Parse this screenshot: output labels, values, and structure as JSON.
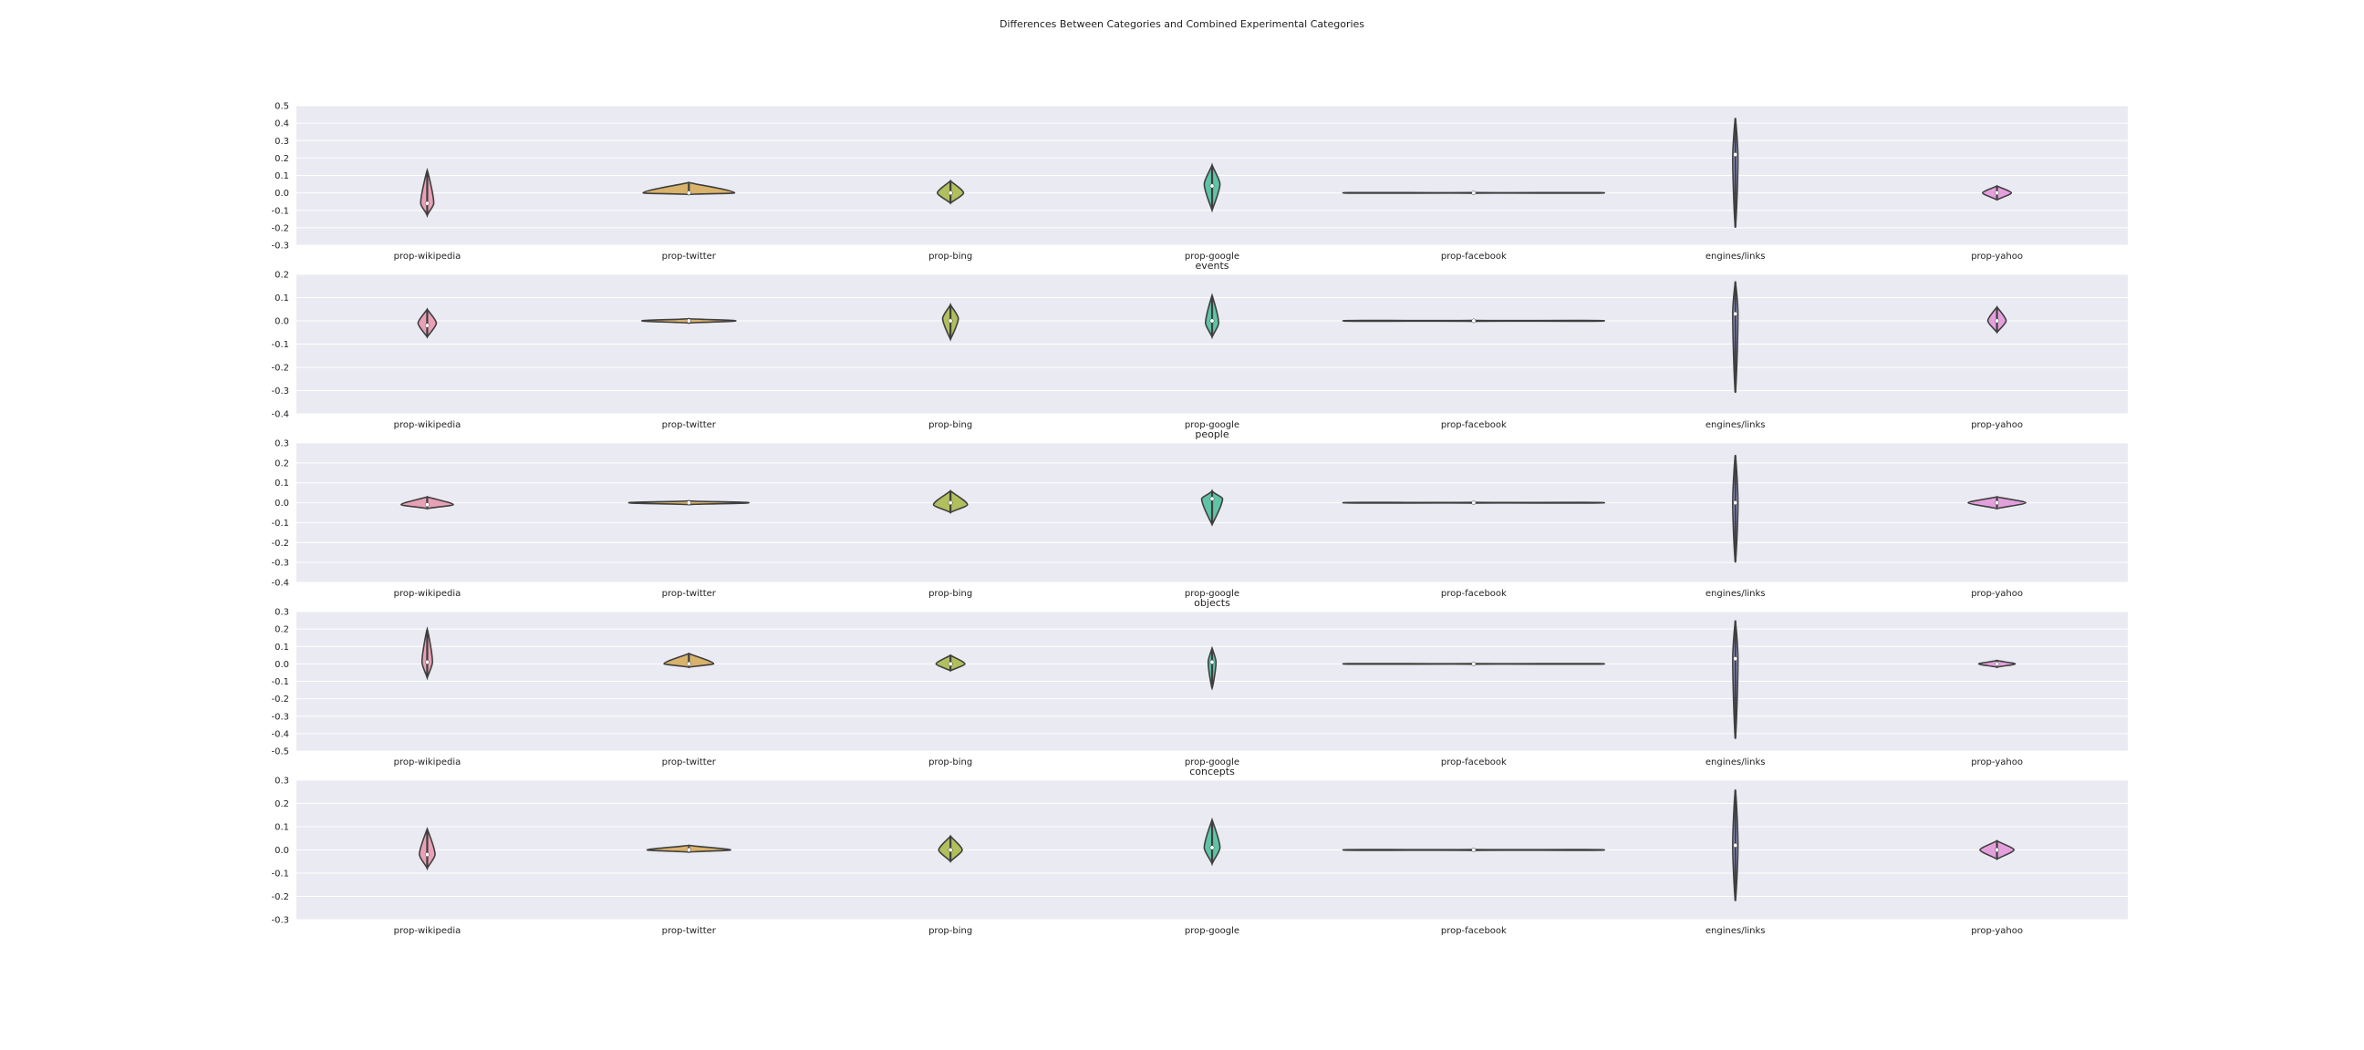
{
  "figure": {
    "title": "Differences Between Categories and Combined Experimental Categories"
  },
  "categories": [
    "prop-wikipedia",
    "prop-twitter",
    "prop-bing",
    "prop-google",
    "prop-facebook",
    "engines/links",
    "prop-yahoo"
  ],
  "palette": [
    "#e8a1b6",
    "#d9b26b",
    "#b1bf5c",
    "#5fc4a6",
    "#62b4d6",
    "#a3a9e6",
    "#e4a0dc"
  ],
  "chart_data": [
    {
      "type": "violin",
      "subtitle": "",
      "ylim": [
        -0.3,
        0.5
      ],
      "yticks": [
        -0.3,
        -0.2,
        -0.1,
        0.0,
        0.1,
        0.2,
        0.3,
        0.4,
        0.5
      ],
      "grid": true,
      "violins": [
        {
          "category": "prop-wikipedia",
          "min": -0.13,
          "max": 0.13,
          "median": -0.06,
          "peak": -0.06,
          "width": 0.05
        },
        {
          "category": "prop-twitter",
          "min": -0.01,
          "max": 0.06,
          "median": 0.0,
          "peak": 0.0,
          "width": 0.35
        },
        {
          "category": "prop-bing",
          "min": -0.06,
          "max": 0.07,
          "median": 0.0,
          "peak": 0.0,
          "width": 0.1
        },
        {
          "category": "prop-google",
          "min": -0.1,
          "max": 0.16,
          "median": 0.04,
          "peak": 0.05,
          "width": 0.06
        },
        {
          "category": "prop-facebook",
          "min": -0.003,
          "max": 0.003,
          "median": 0.0,
          "peak": 0.0,
          "width": 1.0
        },
        {
          "category": "engines/links",
          "min": -0.2,
          "max": 0.43,
          "median": 0.22,
          "peak": 0.2,
          "width": 0.02
        },
        {
          "category": "prop-yahoo",
          "min": -0.04,
          "max": 0.04,
          "median": 0.0,
          "peak": 0.0,
          "width": 0.11
        }
      ]
    },
    {
      "type": "violin",
      "subtitle": "events",
      "ylim": [
        -0.4,
        0.2
      ],
      "yticks": [
        -0.4,
        -0.3,
        -0.2,
        -0.1,
        0.0,
        0.1,
        0.2
      ],
      "grid": true,
      "violins": [
        {
          "category": "prop-wikipedia",
          "min": -0.07,
          "max": 0.05,
          "median": -0.02,
          "peak": -0.01,
          "width": 0.07
        },
        {
          "category": "prop-twitter",
          "min": -0.01,
          "max": 0.01,
          "median": 0.0,
          "peak": 0.0,
          "width": 0.36
        },
        {
          "category": "prop-bing",
          "min": -0.08,
          "max": 0.07,
          "median": 0.0,
          "peak": 0.01,
          "width": 0.06
        },
        {
          "category": "prop-google",
          "min": -0.07,
          "max": 0.11,
          "median": 0.0,
          "peak": -0.01,
          "width": 0.05
        },
        {
          "category": "prop-facebook",
          "min": -0.003,
          "max": 0.003,
          "median": 0.0,
          "peak": 0.0,
          "width": 1.0
        },
        {
          "category": "engines/links",
          "min": -0.31,
          "max": 0.17,
          "median": 0.03,
          "peak": 0.03,
          "width": 0.02
        },
        {
          "category": "prop-yahoo",
          "min": -0.05,
          "max": 0.06,
          "median": 0.0,
          "peak": 0.0,
          "width": 0.07
        }
      ]
    },
    {
      "type": "violin",
      "subtitle": "people",
      "ylim": [
        -0.4,
        0.3
      ],
      "yticks": [
        -0.4,
        -0.3,
        -0.2,
        -0.1,
        0.0,
        0.1,
        0.2,
        0.3
      ],
      "grid": true,
      "violins": [
        {
          "category": "prop-wikipedia",
          "min": -0.03,
          "max": 0.03,
          "median": -0.01,
          "peak": -0.01,
          "width": 0.2
        },
        {
          "category": "prop-twitter",
          "min": -0.01,
          "max": 0.01,
          "median": 0.0,
          "peak": 0.0,
          "width": 0.46
        },
        {
          "category": "prop-bing",
          "min": -0.05,
          "max": 0.06,
          "median": 0.0,
          "peak": -0.01,
          "width": 0.13
        },
        {
          "category": "prop-google",
          "min": -0.11,
          "max": 0.06,
          "median": 0.02,
          "peak": 0.02,
          "width": 0.08
        },
        {
          "category": "prop-facebook",
          "min": -0.003,
          "max": 0.003,
          "median": 0.0,
          "peak": 0.0,
          "width": 1.0
        },
        {
          "category": "engines/links",
          "min": -0.3,
          "max": 0.24,
          "median": 0.0,
          "peak": 0.0,
          "width": 0.02
        },
        {
          "category": "prop-yahoo",
          "min": -0.03,
          "max": 0.03,
          "median": 0.0,
          "peak": 0.0,
          "width": 0.22
        }
      ]
    },
    {
      "type": "violin",
      "subtitle": "objects",
      "ylim": [
        -0.5,
        0.3
      ],
      "yticks": [
        -0.5,
        -0.4,
        -0.3,
        -0.2,
        -0.1,
        0.0,
        0.1,
        0.2,
        0.3
      ],
      "grid": true,
      "violins": [
        {
          "category": "prop-wikipedia",
          "min": -0.08,
          "max": 0.2,
          "median": 0.01,
          "peak": 0.01,
          "width": 0.04
        },
        {
          "category": "prop-twitter",
          "min": -0.02,
          "max": 0.06,
          "median": 0.0,
          "peak": 0.0,
          "width": 0.19
        },
        {
          "category": "prop-bing",
          "min": -0.04,
          "max": 0.05,
          "median": 0.0,
          "peak": 0.0,
          "width": 0.11
        },
        {
          "category": "prop-google",
          "min": -0.14,
          "max": 0.09,
          "median": 0.01,
          "peak": 0.01,
          "width": 0.03
        },
        {
          "category": "prop-facebook",
          "min": -0.003,
          "max": 0.003,
          "median": 0.0,
          "peak": 0.0,
          "width": 1.0
        },
        {
          "category": "engines/links",
          "min": -0.43,
          "max": 0.25,
          "median": 0.03,
          "peak": 0.03,
          "width": 0.02
        },
        {
          "category": "prop-yahoo",
          "min": -0.02,
          "max": 0.02,
          "median": 0.0,
          "peak": 0.0,
          "width": 0.14
        }
      ]
    },
    {
      "type": "violin",
      "subtitle": "concepts",
      "ylim": [
        -0.3,
        0.3
      ],
      "yticks": [
        -0.3,
        -0.2,
        -0.1,
        0.0,
        0.1,
        0.2,
        0.3
      ],
      "grid": true,
      "violins": [
        {
          "category": "prop-wikipedia",
          "min": -0.08,
          "max": 0.09,
          "median": -0.02,
          "peak": -0.02,
          "width": 0.06
        },
        {
          "category": "prop-twitter",
          "min": -0.01,
          "max": 0.02,
          "median": 0.0,
          "peak": 0.0,
          "width": 0.32
        },
        {
          "category": "prop-bing",
          "min": -0.05,
          "max": 0.06,
          "median": 0.0,
          "peak": 0.0,
          "width": 0.09
        },
        {
          "category": "prop-google",
          "min": -0.06,
          "max": 0.13,
          "median": 0.01,
          "peak": 0.01,
          "width": 0.06
        },
        {
          "category": "prop-facebook",
          "min": -0.003,
          "max": 0.003,
          "median": 0.0,
          "peak": 0.0,
          "width": 1.0
        },
        {
          "category": "engines/links",
          "min": -0.22,
          "max": 0.26,
          "median": 0.02,
          "peak": 0.02,
          "width": 0.02
        },
        {
          "category": "prop-yahoo",
          "min": -0.04,
          "max": 0.04,
          "median": 0.0,
          "peak": 0.0,
          "width": 0.13
        }
      ]
    }
  ]
}
